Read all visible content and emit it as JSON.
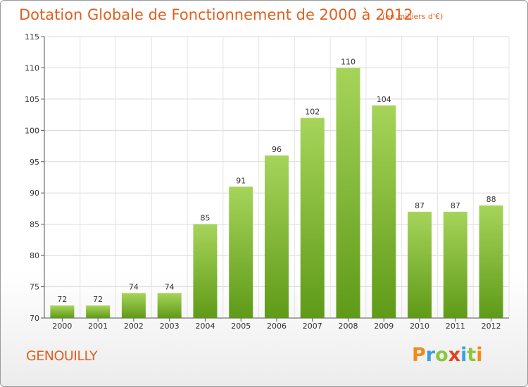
{
  "header": {
    "title": "Dotation Globale de Fonctionnement de 2000 à 2012",
    "unit": "(en milliers d'€)"
  },
  "footer": {
    "commune": "GENOUILLY",
    "logo_letters": [
      {
        "char": "P",
        "color": "#f08a1c"
      },
      {
        "char": "r",
        "color": "#3aa0dc"
      },
      {
        "char": "o",
        "color": "#8cc63f"
      },
      {
        "char": "x",
        "color": "#e0441f"
      },
      {
        "char": "i",
        "color": "#3aa0dc"
      },
      {
        "char": "t",
        "color": "#8cc63f"
      },
      {
        "char": "i",
        "color": "#f08a1c"
      }
    ]
  },
  "chart_data": {
    "type": "bar",
    "title": "Dotation Globale de Fonctionnement de 2000 à 2012",
    "subtitle": "(en milliers d'€)",
    "categories": [
      "2000",
      "2001",
      "2002",
      "2003",
      "2004",
      "2005",
      "2006",
      "2007",
      "2008",
      "2009",
      "2010",
      "2011",
      "2012"
    ],
    "values": [
      72,
      72,
      74,
      74,
      85,
      91,
      96,
      102,
      110,
      104,
      87,
      87,
      88
    ],
    "ylim": [
      70,
      115
    ],
    "yticks": [
      70,
      75,
      80,
      85,
      90,
      95,
      100,
      105,
      110,
      115
    ],
    "grid": true,
    "bar_color_top": "#a6d45a",
    "bar_color_bottom": "#5f9a18"
  }
}
